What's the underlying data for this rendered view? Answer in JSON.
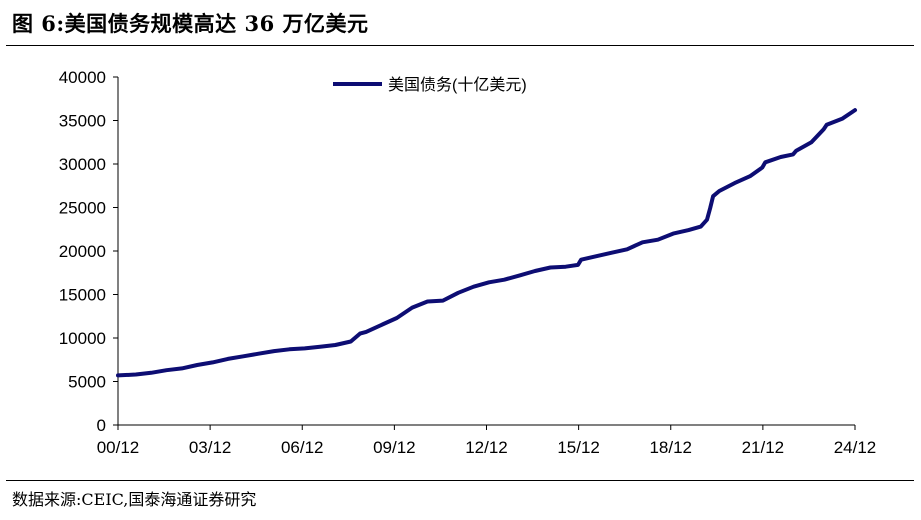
{
  "figure": {
    "title": "图 6:美国债务规模高达 36 万亿美元",
    "source": "数据来源:CEIC,国泰海通证券研究"
  },
  "colors": {
    "series": "#0d0d73",
    "axis": "#000000"
  },
  "chart_data": {
    "type": "line",
    "legend_position": "top-center",
    "grid": false,
    "series": [
      {
        "name": "美国债务(十亿美元)",
        "x": [
          2000.92,
          2001.5,
          2002.0,
          2002.5,
          2003.0,
          2003.5,
          2004.0,
          2004.5,
          2005.0,
          2005.5,
          2006.0,
          2006.5,
          2007.0,
          2007.5,
          2008.0,
          2008.5,
          2008.8,
          2009.0,
          2009.5,
          2010.0,
          2010.5,
          2011.0,
          2011.5,
          2012.0,
          2012.5,
          2013.0,
          2013.5,
          2014.0,
          2014.5,
          2015.0,
          2015.5,
          2015.9,
          2016.0,
          2016.5,
          2017.0,
          2017.5,
          2018.0,
          2018.5,
          2019.0,
          2019.5,
          2019.9,
          2020.1,
          2020.2,
          2020.3,
          2020.5,
          2021.0,
          2021.5,
          2021.9,
          2022.0,
          2022.5,
          2022.9,
          2023.0,
          2023.5,
          2023.9,
          2024.0,
          2024.5,
          2024.92
        ],
        "values": [
          5700,
          5800,
          6000,
          6300,
          6500,
          6900,
          7200,
          7600,
          7900,
          8200,
          8500,
          8700,
          8800,
          9000,
          9200,
          9600,
          10500,
          10700,
          11500,
          12300,
          13500,
          14200,
          14300,
          15200,
          15900,
          16400,
          16700,
          17200,
          17700,
          18100,
          18200,
          18400,
          19000,
          19400,
          19800,
          20200,
          21000,
          21300,
          22000,
          22400,
          22800,
          23600,
          24900,
          26300,
          26900,
          27800,
          28600,
          29600,
          30200,
          30800,
          31100,
          31500,
          32500,
          34000,
          34500,
          35200,
          36200
        ]
      }
    ],
    "xlim": [
      2000.92,
      2024.92
    ],
    "ylim": [
      0,
      40000
    ],
    "x_ticks": [
      2000.92,
      2003.92,
      2006.92,
      2009.92,
      2012.92,
      2015.92,
      2018.92,
      2021.92,
      2024.92
    ],
    "x_tick_labels": [
      "00/12",
      "03/12",
      "06/12",
      "09/12",
      "12/12",
      "15/12",
      "18/12",
      "21/12",
      "24/12"
    ],
    "y_ticks": [
      0,
      5000,
      10000,
      15000,
      20000,
      25000,
      30000,
      35000,
      40000
    ],
    "y_tick_labels": [
      "0",
      "5000",
      "10000",
      "15000",
      "20000",
      "25000",
      "30000",
      "35000",
      "40000"
    ]
  }
}
